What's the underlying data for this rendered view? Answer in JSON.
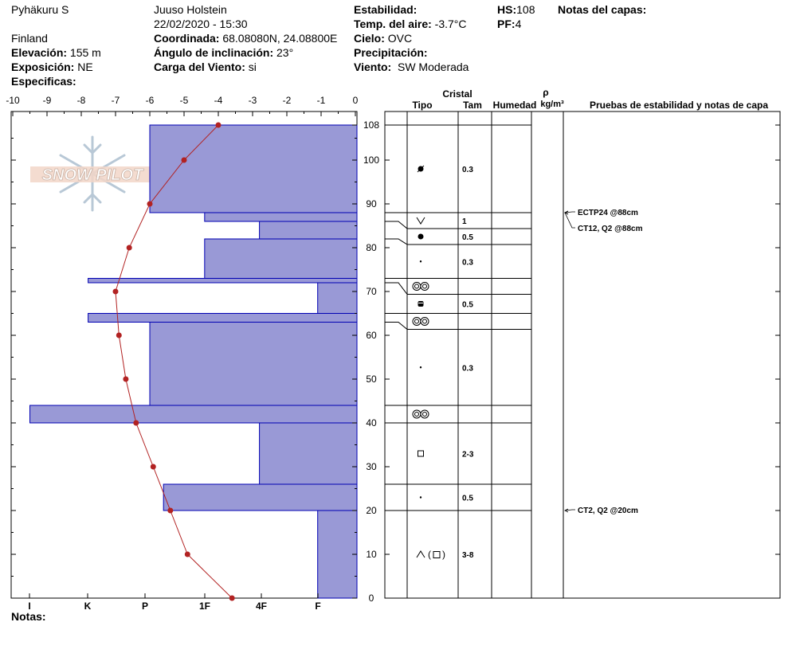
{
  "header": {
    "location": "Pyhäkuru S",
    "country": "Finland",
    "elevation_label": "Elevación:",
    "elevation_value": "155 m",
    "aspect_label": "Exposición:",
    "aspect_value": "NE",
    "specifics_label": "Especificas:",
    "observer": "Juuso Holstein",
    "datetime": "22/02/2020 - 15:30",
    "coord_label": "Coordinada:",
    "coord_value": "68.08080N, 24.08800E",
    "slope_label": "Ángulo de inclinación:",
    "slope_value": "23°",
    "windload_label": "Carga del Viento:",
    "windload_value": "si",
    "stability_label": "Estabilidad:",
    "stability_value": "",
    "airtemp_label": "Temp. del aire:",
    "airtemp_value": "-3.7°C",
    "sky_label": "Cielo:",
    "sky_value": "OVC",
    "precip_label": "Precipitación:",
    "precip_value": "",
    "wind_label": "Viento:",
    "wind_value": "SW Moderada",
    "hs_label": "HS:",
    "hs_value": "108",
    "pf_label": "PF:",
    "pf_value": "4",
    "layer_notes_label": "Notas del capas:"
  },
  "notes_label": "Notas:",
  "logo_text": "SNOW PILOT",
  "columns": {
    "crystal": "Cristal",
    "type": "Tipo",
    "size": "Tam",
    "moisture": "Humedad",
    "rho": "ρ",
    "density_unit": "kg/m³",
    "tests": "Pruebas de estabilidad y notas de capa"
  },
  "colors": {
    "hardness_fill": "#9999d6",
    "hardness_stroke": "#0000b3",
    "temp_line": "#b22222"
  },
  "chart_data": {
    "type": "snow-profile",
    "temp_axis_ticks": [
      "-10",
      "-9",
      "-8",
      "-7",
      "-6",
      "-5",
      "-4",
      "-3",
      "-2",
      "-1",
      "0"
    ],
    "temp_range": [
      -10,
      0
    ],
    "hardness_ticks": [
      "I",
      "K",
      "P",
      "1F",
      "4F",
      "F"
    ],
    "depth_ticks": [
      "0",
      "10",
      "20",
      "30",
      "40",
      "50",
      "60",
      "70",
      "80",
      "90",
      "100",
      "108"
    ],
    "depth_range": [
      0,
      108
    ],
    "temperature_profile": [
      {
        "depth": 108,
        "temp": -4.0
      },
      {
        "depth": 100,
        "temp": -5.0
      },
      {
        "depth": 90,
        "temp": -6.0
      },
      {
        "depth": 80,
        "temp": -6.6
      },
      {
        "depth": 70,
        "temp": -7.0
      },
      {
        "depth": 60,
        "temp": -6.9
      },
      {
        "depth": 50,
        "temp": -6.7
      },
      {
        "depth": 40,
        "temp": -6.4
      },
      {
        "depth": 30,
        "temp": -5.9
      },
      {
        "depth": 20,
        "temp": -5.4
      },
      {
        "depth": 10,
        "temp": -4.9
      },
      {
        "depth": 0,
        "temp": -3.6
      }
    ],
    "hardness_layers": [
      {
        "top": 108,
        "bottom": 88,
        "hardness": 6.0
      },
      {
        "top": 88,
        "bottom": 86,
        "hardness": 4.4
      },
      {
        "top": 86,
        "bottom": 82,
        "hardness": 2.8
      },
      {
        "top": 82,
        "bottom": 73,
        "hardness": 4.4
      },
      {
        "top": 73,
        "bottom": 72,
        "hardness": 7.8
      },
      {
        "top": 72,
        "bottom": 65,
        "hardness": 1.1
      },
      {
        "top": 65,
        "bottom": 63,
        "hardness": 7.8
      },
      {
        "top": 63,
        "bottom": 44,
        "hardness": 6.0
      },
      {
        "top": 44,
        "bottom": 40,
        "hardness": 9.5
      },
      {
        "top": 40,
        "bottom": 26,
        "hardness": 2.8
      },
      {
        "top": 26,
        "bottom": 20,
        "hardness": 5.6
      },
      {
        "top": 20,
        "bottom": 0,
        "hardness": 1.1
      }
    ],
    "crystal_layers": [
      {
        "top": 108,
        "bottom": 88,
        "type": "rounded",
        "size": "0.3"
      },
      {
        "top": 88,
        "bottom": 86,
        "type": "surface-hoar",
        "size": "1"
      },
      {
        "top": 86,
        "bottom": 82,
        "type": "melt-form",
        "size": "0.5"
      },
      {
        "top": 82,
        "bottom": 73,
        "type": "fine",
        "size": "0.3"
      },
      {
        "top": 73,
        "bottom": 72,
        "type": "ice",
        "size": ""
      },
      {
        "top": 72,
        "bottom": 65,
        "type": "cup",
        "size": "0.5"
      },
      {
        "top": 65,
        "bottom": 63,
        "type": "ice",
        "size": ""
      },
      {
        "top": 63,
        "bottom": 44,
        "type": "fine",
        "size": "0.3"
      },
      {
        "top": 44,
        "bottom": 40,
        "type": "ice",
        "size": ""
      },
      {
        "top": 40,
        "bottom": 26,
        "type": "faceted",
        "size": "2-3"
      },
      {
        "top": 26,
        "bottom": 20,
        "type": "fine",
        "size": "0.5"
      },
      {
        "top": 20,
        "bottom": 0,
        "type": "depth-hoar-faceted",
        "size": "3-8"
      }
    ],
    "tests": [
      {
        "depth": 88,
        "label": "ECTP24 @88cm"
      },
      {
        "depth": 88,
        "label": "CT12, Q2 @88cm"
      },
      {
        "depth": 20,
        "label": "CT2, Q2 @20cm"
      }
    ]
  }
}
